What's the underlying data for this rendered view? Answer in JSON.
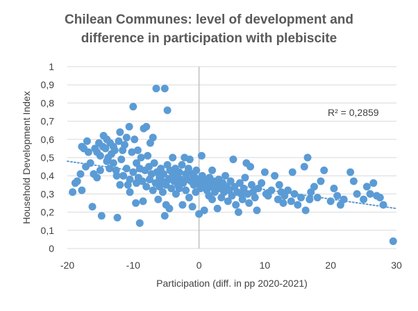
{
  "chart_data": {
    "type": "scatter",
    "title_lines": [
      "Chilean Communes: level of development and",
      "difference in participation with plebiscite"
    ],
    "xlabel": "Participation (diff. in pp 2020-2021)",
    "ylabel": "Household Development Index",
    "xlim": [
      -20,
      30
    ],
    "ylim": [
      0,
      1
    ],
    "x_ticks": [
      "-20",
      "-10",
      "0",
      "10",
      "20",
      "30"
    ],
    "y_ticks": [
      "0",
      "0,1",
      "0,2",
      "0,3",
      "0,4",
      "0,5",
      "0,6",
      "0,7",
      "0,8",
      "0,9",
      "1"
    ],
    "grid": "horizontal",
    "trendline": {
      "type": "linear",
      "style": "dotted",
      "x": [
        -20,
        30
      ],
      "y": [
        0.48,
        0.22
      ]
    },
    "r_squared_label": "R² = 0,2859",
    "colors": {
      "marker": "#5b9bd5",
      "trendline": "#5b9bd5",
      "grid": "#d9d9d9",
      "zero_axis": "#bfbfbf"
    },
    "points": [
      [
        -19.2,
        0.31
      ],
      [
        -18.8,
        0.36
      ],
      [
        -18.5,
        0.37
      ],
      [
        -18.0,
        0.41
      ],
      [
        -17.8,
        0.32
      ],
      [
        -17.8,
        0.56
      ],
      [
        -17.5,
        0.55
      ],
      [
        -17.2,
        0.45
      ],
      [
        -17.0,
        0.59
      ],
      [
        -16.8,
        0.53
      ],
      [
        -16.5,
        0.47
      ],
      [
        -16.2,
        0.23
      ],
      [
        -16.0,
        0.41
      ],
      [
        -15.8,
        0.55
      ],
      [
        -15.5,
        0.53
      ],
      [
        -15.5,
        0.39
      ],
      [
        -15.2,
        0.58
      ],
      [
        -15.0,
        0.51
      ],
      [
        -15.0,
        0.43
      ],
      [
        -14.8,
        0.18
      ],
      [
        -14.6,
        0.56
      ],
      [
        -14.5,
        0.62
      ],
      [
        -14.2,
        0.55
      ],
      [
        -14.0,
        0.48
      ],
      [
        -14.0,
        0.6
      ],
      [
        -13.8,
        0.5
      ],
      [
        -13.6,
        0.44
      ],
      [
        -13.5,
        0.58
      ],
      [
        -13.3,
        0.52
      ],
      [
        -13.0,
        0.56
      ],
      [
        -13.0,
        0.47
      ],
      [
        -12.8,
        0.54
      ],
      [
        -12.6,
        0.43
      ],
      [
        -12.5,
        0.4
      ],
      [
        -12.4,
        0.17
      ],
      [
        -12.2,
        0.59
      ],
      [
        -12.0,
        0.64
      ],
      [
        -12.0,
        0.35
      ],
      [
        -11.8,
        0.49
      ],
      [
        -11.6,
        0.54
      ],
      [
        -11.5,
        0.4
      ],
      [
        -11.3,
        0.57
      ],
      [
        -11.0,
        0.61
      ],
      [
        -11.0,
        0.44
      ],
      [
        -10.8,
        0.35
      ],
      [
        -10.6,
        0.67
      ],
      [
        -10.5,
        0.38
      ],
      [
        -10.5,
        0.31
      ],
      [
        -10.2,
        0.53
      ],
      [
        -10.0,
        0.78
      ],
      [
        -10.0,
        0.42
      ],
      [
        -9.8,
        0.6
      ],
      [
        -9.6,
        0.25
      ],
      [
        -9.5,
        0.47
      ],
      [
        -9.5,
        0.36
      ],
      [
        -9.3,
        0.54
      ],
      [
        -9.2,
        0.39
      ],
      [
        -9.0,
        0.44
      ],
      [
        -9.0,
        0.14
      ],
      [
        -8.8,
        0.5
      ],
      [
        -8.6,
        0.37
      ],
      [
        -8.5,
        0.26
      ],
      [
        -8.4,
        0.66
      ],
      [
        -8.2,
        0.43
      ],
      [
        -8.0,
        0.67
      ],
      [
        -8.0,
        0.34
      ],
      [
        -7.8,
        0.51
      ],
      [
        -7.6,
        0.45
      ],
      [
        -7.5,
        0.38
      ],
      [
        -7.4,
        0.58
      ],
      [
        -7.2,
        0.41
      ],
      [
        -7.0,
        0.61
      ],
      [
        -7.0,
        0.32
      ],
      [
        -6.8,
        0.47
      ],
      [
        -6.6,
        0.36
      ],
      [
        -6.5,
        0.88
      ],
      [
        -6.4,
        0.42
      ],
      [
        -6.2,
        0.27
      ],
      [
        -6.0,
        0.39
      ],
      [
        -6.0,
        0.34
      ],
      [
        -5.8,
        0.44
      ],
      [
        -5.6,
        0.37
      ],
      [
        -5.5,
        0.31
      ],
      [
        -5.4,
        0.41
      ],
      [
        -5.2,
        0.88
      ],
      [
        -5.2,
        0.18
      ],
      [
        -5.0,
        0.35
      ],
      [
        -5.0,
        0.24
      ],
      [
        -4.8,
        0.76
      ],
      [
        -4.8,
        0.46
      ],
      [
        -4.6,
        0.38
      ],
      [
        -4.5,
        0.22
      ],
      [
        -4.4,
        0.43
      ],
      [
        -4.2,
        0.33
      ],
      [
        -4.0,
        0.5
      ],
      [
        -4.0,
        0.41
      ],
      [
        -3.8,
        0.37
      ],
      [
        -3.6,
        0.44
      ],
      [
        -3.5,
        0.3
      ],
      [
        -3.4,
        0.39
      ],
      [
        -3.2,
        0.35
      ],
      [
        -3.0,
        0.42
      ],
      [
        -3.0,
        0.33
      ],
      [
        -2.8,
        0.38
      ],
      [
        -2.6,
        0.46
      ],
      [
        -2.5,
        0.24
      ],
      [
        -2.4,
        0.36
      ],
      [
        -2.2,
        0.5
      ],
      [
        -2.0,
        0.41
      ],
      [
        -2.0,
        0.32
      ],
      [
        -1.8,
        0.38
      ],
      [
        -1.6,
        0.44
      ],
      [
        -1.5,
        0.28
      ],
      [
        -1.4,
        0.49
      ],
      [
        -1.2,
        0.37
      ],
      [
        -1.0,
        0.41
      ],
      [
        -1.0,
        0.23
      ],
      [
        -0.8,
        0.35
      ],
      [
        -0.6,
        0.39
      ],
      [
        -0.5,
        0.31
      ],
      [
        -0.4,
        0.43
      ],
      [
        -0.2,
        0.36
      ],
      [
        0.0,
        0.19
      ],
      [
        0.0,
        0.38
      ],
      [
        0.2,
        0.33
      ],
      [
        0.4,
        0.51
      ],
      [
        0.5,
        0.4
      ],
      [
        0.6,
        0.35
      ],
      [
        0.8,
        0.21
      ],
      [
        1.0,
        0.38
      ],
      [
        1.2,
        0.32
      ],
      [
        1.4,
        0.36
      ],
      [
        1.5,
        0.29
      ],
      [
        1.6,
        0.39
      ],
      [
        1.8,
        0.34
      ],
      [
        2.0,
        0.43
      ],
      [
        2.0,
        0.27
      ],
      [
        2.2,
        0.37
      ],
      [
        2.4,
        0.31
      ],
      [
        2.6,
        0.35
      ],
      [
        2.8,
        0.22
      ],
      [
        3.0,
        0.38
      ],
      [
        3.2,
        0.33
      ],
      [
        3.4,
        0.28
      ],
      [
        3.6,
        0.36
      ],
      [
        3.8,
        0.31
      ],
      [
        4.0,
        0.4
      ],
      [
        4.2,
        0.34
      ],
      [
        4.4,
        0.26
      ],
      [
        4.6,
        0.32
      ],
      [
        4.8,
        0.37
      ],
      [
        5.0,
        0.29
      ],
      [
        5.2,
        0.49
      ],
      [
        5.4,
        0.34
      ],
      [
        5.6,
        0.24
      ],
      [
        5.8,
        0.31
      ],
      [
        6.0,
        0.2
      ],
      [
        6.2,
        0.36
      ],
      [
        6.4,
        0.3
      ],
      [
        6.6,
        0.27
      ],
      [
        6.8,
        0.33
      ],
      [
        7.0,
        0.39
      ],
      [
        7.2,
        0.47
      ],
      [
        7.4,
        0.3
      ],
      [
        7.6,
        0.25
      ],
      [
        7.8,
        0.45
      ],
      [
        8.0,
        0.35
      ],
      [
        8.2,
        0.31
      ],
      [
        8.5,
        0.28
      ],
      [
        8.8,
        0.21
      ],
      [
        9.0,
        0.33
      ],
      [
        9.5,
        0.36
      ],
      [
        10.0,
        0.42
      ],
      [
        10.2,
        0.3
      ],
      [
        10.5,
        0.29
      ],
      [
        11.0,
        0.32
      ],
      [
        11.5,
        0.4
      ],
      [
        12.0,
        0.27
      ],
      [
        12.2,
        0.35
      ],
      [
        12.5,
        0.31
      ],
      [
        12.8,
        0.25
      ],
      [
        13.0,
        0.29
      ],
      [
        13.5,
        0.32
      ],
      [
        14.0,
        0.26
      ],
      [
        14.2,
        0.42
      ],
      [
        14.5,
        0.3
      ],
      [
        15.0,
        0.24
      ],
      [
        15.5,
        0.28
      ],
      [
        16.0,
        0.45
      ],
      [
        16.2,
        0.21
      ],
      [
        16.5,
        0.5
      ],
      [
        16.8,
        0.27
      ],
      [
        17.0,
        0.31
      ],
      [
        17.5,
        0.34
      ],
      [
        18.0,
        0.28
      ],
      [
        18.5,
        0.37
      ],
      [
        19.0,
        0.43
      ],
      [
        20.0,
        0.26
      ],
      [
        20.5,
        0.33
      ],
      [
        21.0,
        0.29
      ],
      [
        21.5,
        0.24
      ],
      [
        22.0,
        0.27
      ],
      [
        23.0,
        0.42
      ],
      [
        23.5,
        0.37
      ],
      [
        24.0,
        0.3
      ],
      [
        25.0,
        0.27
      ],
      [
        25.5,
        0.34
      ],
      [
        26.0,
        0.3
      ],
      [
        26.5,
        0.36
      ],
      [
        27.0,
        0.29
      ],
      [
        27.5,
        0.28
      ],
      [
        28.0,
        0.24
      ],
      [
        29.5,
        0.04
      ]
    ]
  }
}
